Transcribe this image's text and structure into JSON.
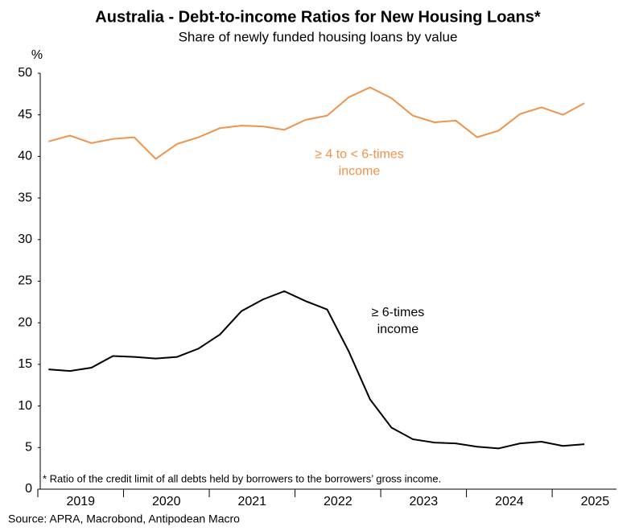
{
  "chart_data": {
    "type": "line",
    "title": "Australia - Debt-to-income Ratios for New Housing Loans*",
    "subtitle": "Share of newly funded housing loans by value",
    "y_label": "%",
    "footnote": "* Ratio of the credit limit of all debts held by borrowers to the borrowers’ gross income.",
    "source": "Source: APRA, Macrobond, Antipodean Macro",
    "x": [
      2019.125,
      2019.375,
      2019.625,
      2019.875,
      2020.125,
      2020.375,
      2020.625,
      2020.875,
      2021.125,
      2021.375,
      2021.625,
      2021.875,
      2022.125,
      2022.375,
      2022.625,
      2022.875,
      2023.125,
      2023.375,
      2023.625,
      2023.875,
      2024.125,
      2024.375,
      2024.625,
      2024.875,
      2025.125,
      2025.375
    ],
    "series": [
      {
        "name": "≥ 4 to < 6-times income",
        "color": "#f0924a",
        "values": [
          41.8,
          42.5,
          41.6,
          42.1,
          42.3,
          39.7,
          41.5,
          42.3,
          43.4,
          43.7,
          43.6,
          43.2,
          44.4,
          44.9,
          47.1,
          48.3,
          47.0,
          44.9,
          44.1,
          44.3,
          42.3,
          43.1,
          45.1,
          45.9,
          45.0,
          46.4
        ]
      },
      {
        "name": "≥ 6-times income",
        "color": "#000000",
        "values": [
          14.4,
          14.2,
          14.6,
          16.0,
          15.9,
          15.7,
          15.9,
          16.9,
          18.6,
          21.4,
          22.8,
          23.8,
          22.6,
          21.6,
          16.6,
          10.8,
          7.4,
          6.0,
          5.6,
          5.5,
          5.1,
          4.9,
          5.5,
          5.7,
          5.2,
          5.4
        ]
      }
    ],
    "annotations": [
      {
        "lines": [
          "≥ 4 to < 6-times",
          "income"
        ],
        "x": 2022.75,
        "y": 40.2,
        "color": "#f0924a"
      },
      {
        "lines": [
          "≥ 6-times",
          "income"
        ],
        "x": 2023.2,
        "y": 21.2,
        "color": "#000000"
      }
    ],
    "xlim": [
      2019,
      2025.75
    ],
    "xticks": [
      2019,
      2020,
      2021,
      2022,
      2023,
      2024,
      2025
    ],
    "ylim": [
      0,
      50
    ],
    "yticks": [
      0,
      5,
      10,
      15,
      20,
      25,
      30,
      35,
      40,
      45,
      50
    ],
    "grid": false
  }
}
